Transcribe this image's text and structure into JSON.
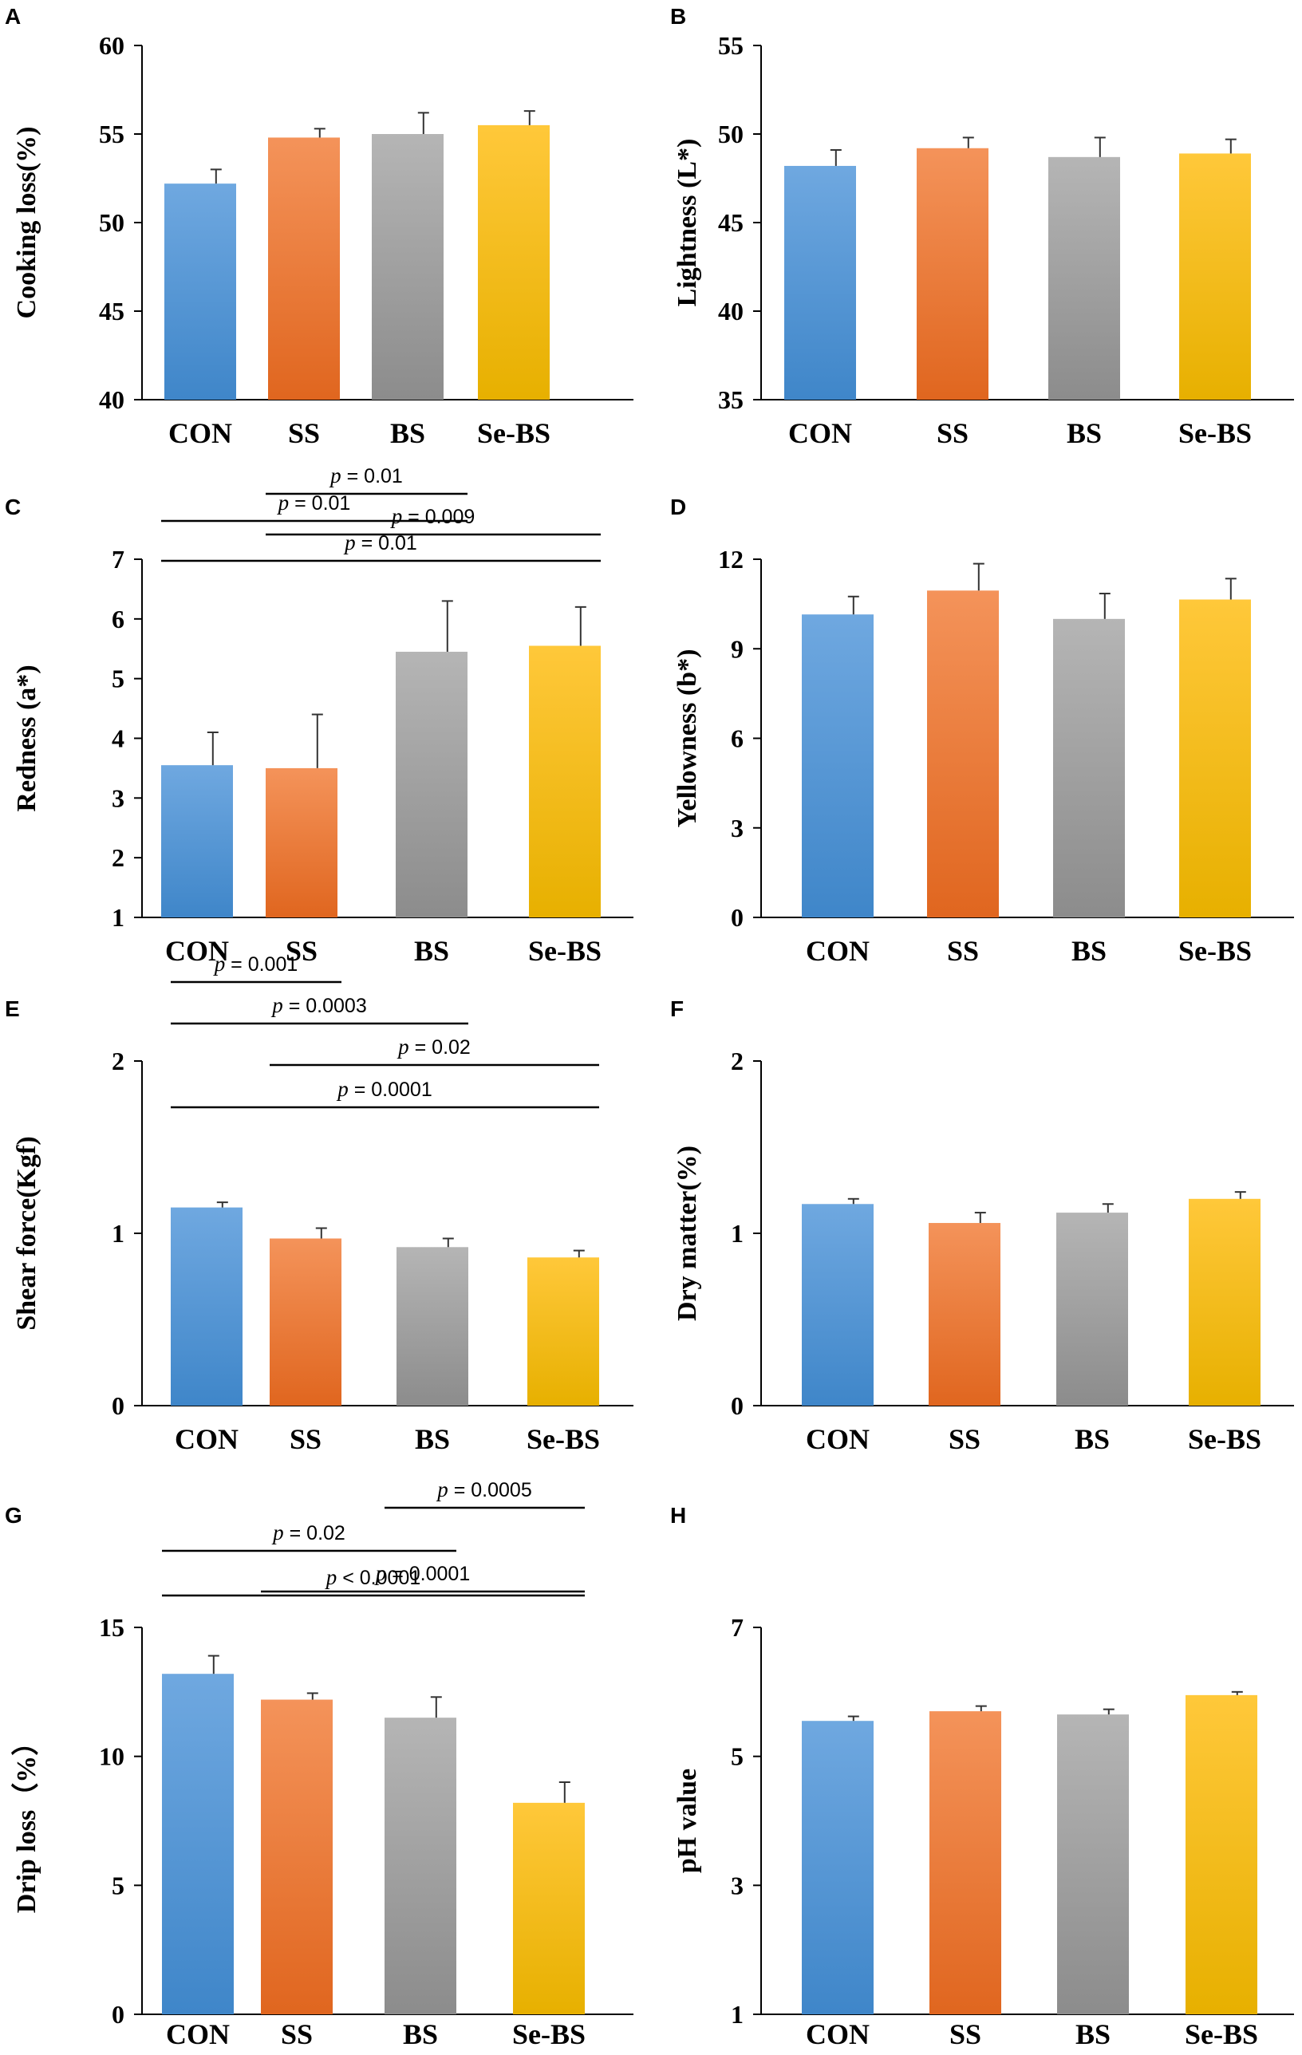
{
  "colors": {
    "CON": [
      "#6fa8e0",
      "#3f86c9"
    ],
    "SS": [
      "#f4935a",
      "#e0661f"
    ],
    "BS": [
      "#b5b5b5",
      "#8c8c8c"
    ],
    "Se-BS": [
      "#ffc83a",
      "#e7b000"
    ]
  },
  "chart_data": [
    {
      "panel": "A",
      "type": "bar",
      "categories": [
        "CON",
        "SS",
        "BS",
        "Se-BS"
      ],
      "values": [
        52.2,
        54.8,
        55.0,
        55.5
      ],
      "errors": [
        0.8,
        0.5,
        1.2,
        0.8
      ],
      "ylabel": "Cooking loss(%)",
      "ylim": [
        40,
        60
      ],
      "yticks": [
        "40",
        "45",
        "50",
        "55",
        "60"
      ],
      "comparisons": []
    },
    {
      "panel": "B",
      "type": "bar",
      "categories": [
        "CON",
        "SS",
        "BS",
        "Se-BS"
      ],
      "values": [
        48.2,
        49.2,
        48.7,
        48.9
      ],
      "errors": [
        0.9,
        0.6,
        1.1,
        0.8
      ],
      "ylabel": "Lightness (L*)",
      "ylim": [
        35,
        55
      ],
      "yticks": [
        "35",
        "40",
        "45",
        "50",
        "55"
      ],
      "comparisons": []
    },
    {
      "panel": "C",
      "type": "bar",
      "categories": [
        "CON",
        "SS",
        "BS",
        "Se-BS"
      ],
      "values": [
        3.55,
        3.5,
        5.45,
        5.55
      ],
      "errors": [
        0.55,
        0.9,
        0.85,
        0.65
      ],
      "ylabel": "Redness (a*)",
      "ylim": [
        1,
        7
      ],
      "yticks": [
        "1",
        "2",
        "3",
        "4",
        "5",
        "6",
        "7"
      ],
      "comparisons": [
        {
          "from": 0,
          "to": 3,
          "p": "p",
          "rest": " = 0.01",
          "level": 4
        },
        {
          "from": 1,
          "to": 3,
          "p": "p",
          "rest": " = 0.009",
          "level": 3
        },
        {
          "from": 0,
          "to": 2,
          "p": "p",
          "rest": " = 0.01",
          "level": 2
        },
        {
          "from": 1,
          "to": 2,
          "p": "p",
          "rest": " = 0.01",
          "level": 1
        }
      ]
    },
    {
      "panel": "D",
      "type": "bar",
      "categories": [
        "CON",
        "SS",
        "BS",
        "Se-BS"
      ],
      "values": [
        10.15,
        10.95,
        10.0,
        10.65
      ],
      "errors": [
        0.6,
        0.9,
        0.85,
        0.7
      ],
      "ylabel": "Yellowness (b*)",
      "ylim": [
        0,
        12
      ],
      "yticks": [
        "0",
        "3",
        "6",
        "9",
        "12"
      ],
      "comparisons": []
    },
    {
      "panel": "E",
      "type": "bar",
      "categories": [
        "CON",
        "SS",
        "BS",
        "Se-BS"
      ],
      "values": [
        1.15,
        0.97,
        0.92,
        0.86
      ],
      "errors": [
        0.03,
        0.06,
        0.05,
        0.04
      ],
      "ylabel": "Shear force(Kgf)",
      "ylim": [
        0,
        2
      ],
      "yticks": [
        "0",
        "1",
        "2"
      ],
      "comparisons": [
        {
          "from": 0,
          "to": 3,
          "p": "p",
          "rest": " = 0.0001",
          "level": 4
        },
        {
          "from": 1,
          "to": 3,
          "p": "p",
          "rest": " = 0.02",
          "level": 3
        },
        {
          "from": 0,
          "to": 2,
          "p": "p",
          "rest": " = 0.0003",
          "level": 2
        },
        {
          "from": 0,
          "to": 1,
          "p": "p",
          "rest": " = 0.001",
          "level": 1
        }
      ]
    },
    {
      "panel": "F",
      "type": "bar",
      "categories": [
        "CON",
        "SS",
        "BS",
        "Se-BS"
      ],
      "values": [
        1.17,
        1.06,
        1.12,
        1.2
      ],
      "errors": [
        0.03,
        0.06,
        0.05,
        0.04
      ],
      "ylabel": "Dry matter(%)",
      "ylim": [
        0,
        2
      ],
      "yticks": [
        "0",
        "1",
        "2"
      ],
      "comparisons": []
    },
    {
      "panel": "G",
      "type": "bar",
      "categories": [
        "CON",
        "SS",
        "BS",
        "Se-BS"
      ],
      "values": [
        13.2,
        12.2,
        11.5,
        8.2
      ],
      "errors": [
        0.7,
        0.25,
        0.8,
        0.8
      ],
      "ylabel": "Drip loss（%）",
      "ylim": [
        0,
        15
      ],
      "yticks": [
        "0",
        "5",
        "10",
        "15"
      ],
      "comparisons": [
        {
          "from": 0,
          "to": 3,
          "p": "p",
          "rest": " < 0.0001",
          "level": 4
        },
        {
          "from": 1,
          "to": 3,
          "p": "p",
          "rest": " = 0.0001",
          "level": 3
        },
        {
          "from": 0,
          "to": 2,
          "p": "p",
          "rest": " = 0.02",
          "level": 2
        },
        {
          "from": 2,
          "to": 3,
          "p": "p",
          "rest": " = 0.0005",
          "level": 1
        }
      ]
    },
    {
      "panel": "H",
      "type": "bar",
      "categories": [
        "CON",
        "SS",
        "BS",
        "Se-BS"
      ],
      "values": [
        5.55,
        5.7,
        5.65,
        5.95
      ],
      "errors": [
        0.07,
        0.08,
        0.08,
        0.05
      ],
      "ylabel": "pH value",
      "ylim": [
        1,
        7
      ],
      "yticks": [
        "1",
        "3",
        "5",
        "7"
      ],
      "comparisons": []
    }
  ]
}
